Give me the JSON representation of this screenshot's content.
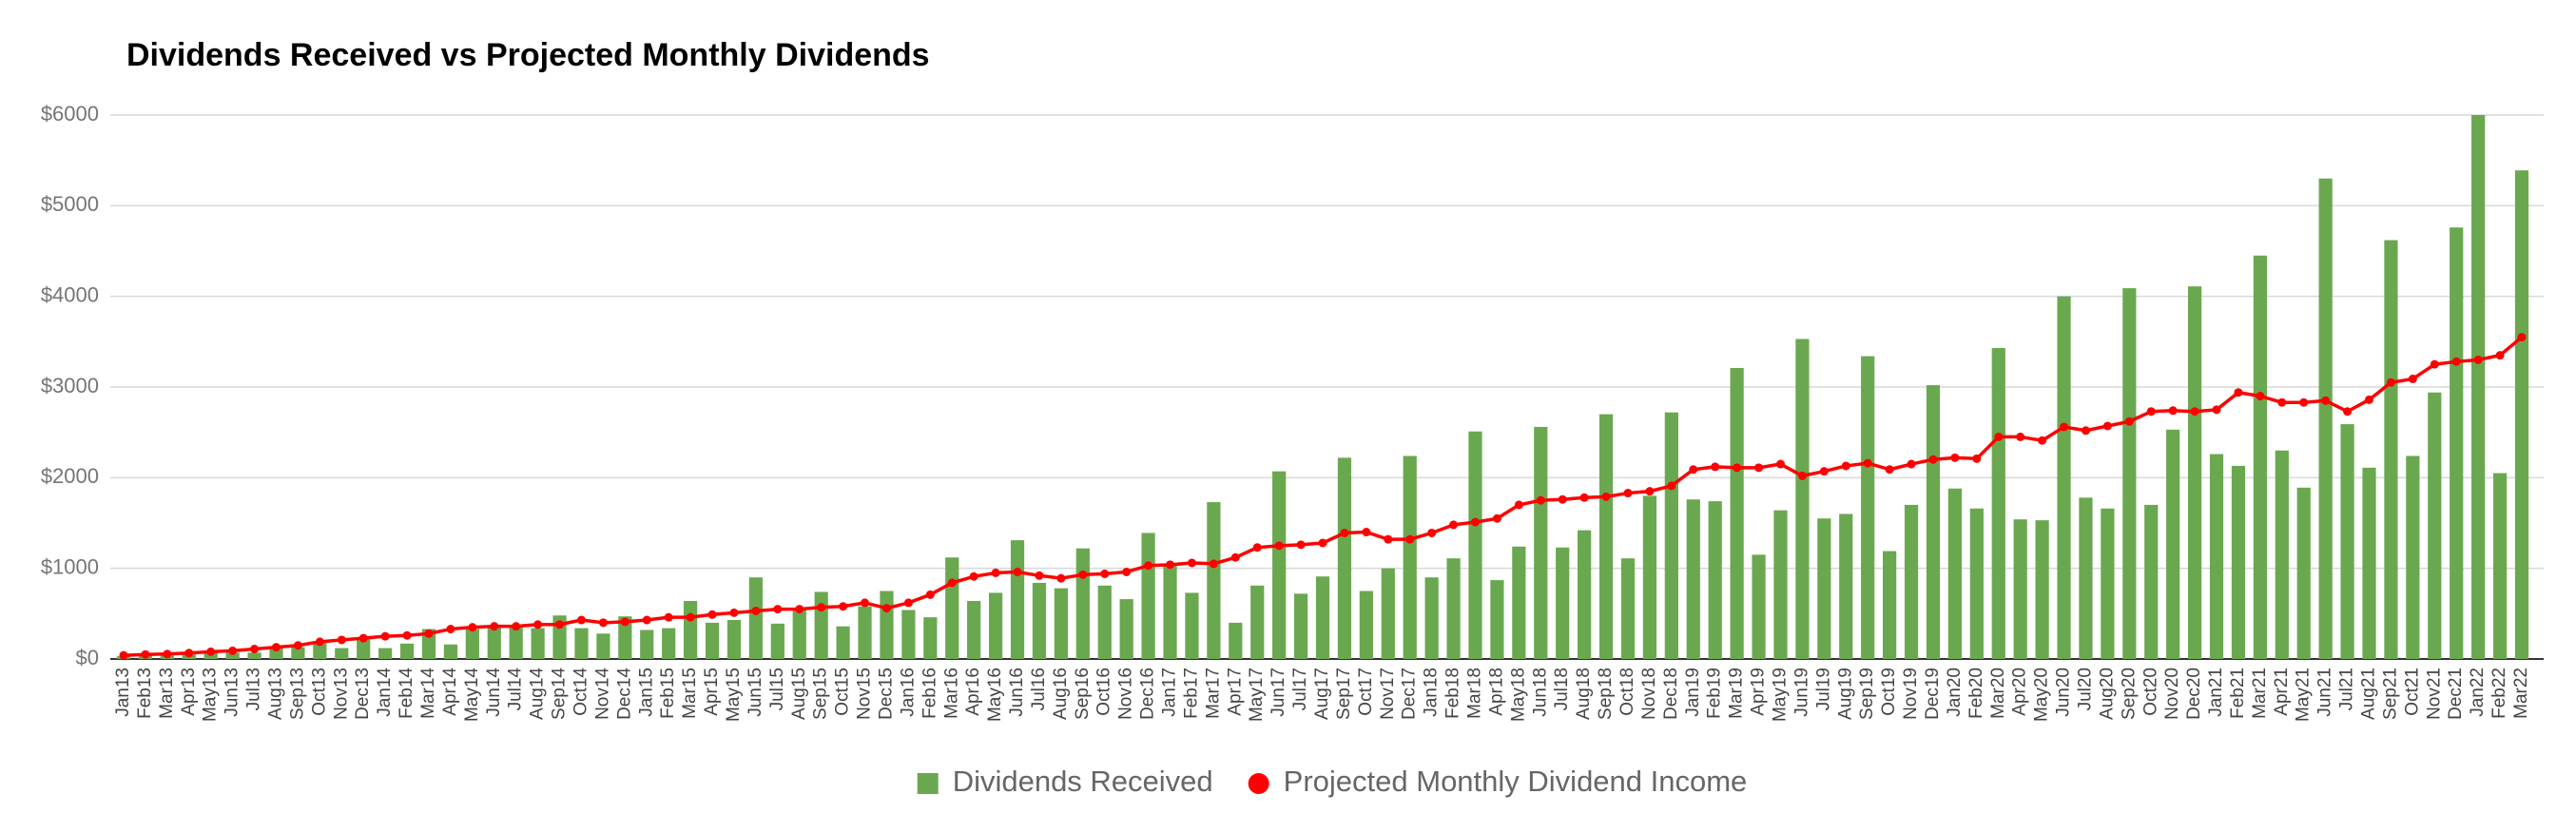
{
  "chart_data": {
    "type": "bar",
    "title": "Dividends Received vs Projected Monthly Dividends",
    "categories": [
      "Jan13",
      "Feb13",
      "Mar13",
      "Apr13",
      "May13",
      "Jun13",
      "Jul13",
      "Aug13",
      "Sep13",
      "Oct13",
      "Nov13",
      "Dec13",
      "Jan14",
      "Feb14",
      "Mar14",
      "Apr14",
      "May14",
      "Jun14",
      "Jul14",
      "Aug14",
      "Sep14",
      "Oct14",
      "Nov14",
      "Dec14",
      "Jan15",
      "Feb15",
      "Mar15",
      "Apr15",
      "May15",
      "Jun15",
      "Jul15",
      "Aug15",
      "Sep15",
      "Oct15",
      "Nov15",
      "Dec15",
      "Jan16",
      "Feb16",
      "Mar16",
      "Apr16",
      "May16",
      "Jun16",
      "Jul16",
      "Aug16",
      "Sep16",
      "Oct16",
      "Nov16",
      "Dec16",
      "Jan17",
      "Feb17",
      "Mar17",
      "Apr17",
      "May17",
      "Jun17",
      "Jul17",
      "Aug17",
      "Sep17",
      "Oct17",
      "Nov17",
      "Dec17",
      "Jan18",
      "Feb18",
      "Mar18",
      "Apr18",
      "May18",
      "Jun18",
      "Jul18",
      "Aug18",
      "Sep18",
      "Oct18",
      "Nov18",
      "Dec18",
      "Jan19",
      "Feb19",
      "Mar19",
      "Apr19",
      "May19",
      "Jun19",
      "Jul19",
      "Aug19",
      "Sep19",
      "Oct19",
      "Nov19",
      "Dec19",
      "Jan20",
      "Feb20",
      "Mar20",
      "Apr20",
      "May20",
      "Jun20",
      "Jul20",
      "Aug20",
      "Sep20",
      "Oct20",
      "Nov20",
      "Dec20",
      "Jan21",
      "Feb21",
      "Mar21",
      "Apr21",
      "May21",
      "Jun21",
      "Jul21",
      "Aug21",
      "Sep21",
      "Oct21",
      "Nov21",
      "Dec21",
      "Jan22",
      "Feb22",
      "Mar22"
    ],
    "series": [
      {
        "name": "Dividends Received",
        "type": "bar",
        "color": "#6aa84f",
        "values": [
          30,
          40,
          40,
          50,
          90,
          70,
          70,
          120,
          130,
          180,
          120,
          230,
          120,
          170,
          330,
          160,
          330,
          360,
          350,
          340,
          480,
          340,
          280,
          470,
          320,
          340,
          640,
          400,
          430,
          900,
          390,
          560,
          740,
          360,
          580,
          750,
          540,
          460,
          1120,
          640,
          730,
          1310,
          840,
          780,
          1220,
          810,
          660,
          1390,
          1040,
          730,
          1730,
          400,
          810,
          2070,
          720,
          910,
          2220,
          750,
          1000,
          2240,
          900,
          1110,
          2510,
          870,
          1240,
          2560,
          1230,
          1420,
          2700,
          1110,
          1800,
          2720,
          1760,
          1740,
          3210,
          1150,
          1640,
          3530,
          1550,
          1600,
          3340,
          1190,
          1700,
          3020,
          1880,
          1660,
          3430,
          1540,
          1530,
          4000,
          1780,
          1660,
          4090,
          1700,
          2530,
          4110,
          2260,
          2130,
          4450,
          2300,
          1890,
          5300,
          2590,
          2110,
          4620,
          2240,
          2940,
          4760,
          6000,
          2050,
          5390
        ]
      },
      {
        "name": "Projected Monthly Dividend Income",
        "type": "line",
        "color": "#ff0000",
        "values": [
          40,
          50,
          55,
          65,
          80,
          90,
          110,
          130,
          150,
          190,
          210,
          230,
          250,
          260,
          280,
          330,
          350,
          360,
          360,
          380,
          380,
          430,
          400,
          410,
          430,
          460,
          460,
          490,
          510,
          530,
          550,
          550,
          570,
          580,
          620,
          560,
          620,
          710,
          840,
          910,
          950,
          960,
          920,
          890,
          930,
          940,
          960,
          1030,
          1040,
          1060,
          1050,
          1120,
          1230,
          1250,
          1260,
          1280,
          1390,
          1400,
          1320,
          1320,
          1390,
          1480,
          1510,
          1550,
          1700,
          1750,
          1760,
          1780,
          1790,
          1830,
          1850,
          1910,
          2090,
          2120,
          2110,
          2110,
          2150,
          2020,
          2070,
          2130,
          2160,
          2090,
          2150,
          2200,
          2220,
          2210,
          2450,
          2450,
          2410,
          2560,
          2520,
          2570,
          2620,
          2730,
          2740,
          2730,
          2750,
          2940,
          2900,
          2830,
          2830,
          2850,
          2730,
          2860,
          3050,
          3090,
          3250,
          3280,
          3300,
          3350,
          3550
        ]
      }
    ],
    "ylim": [
      0,
      6000
    ],
    "yticks": [
      {
        "value": 0,
        "label": "$0"
      },
      {
        "value": 1000,
        "label": "$1000"
      },
      {
        "value": 2000,
        "label": "$2000"
      },
      {
        "value": 3000,
        "label": "$3000"
      },
      {
        "value": 4000,
        "label": "$4000"
      },
      {
        "value": 5000,
        "label": "$5000"
      },
      {
        "value": 6000,
        "label": "$6000"
      }
    ],
    "grid": true,
    "legend": "bottom"
  }
}
